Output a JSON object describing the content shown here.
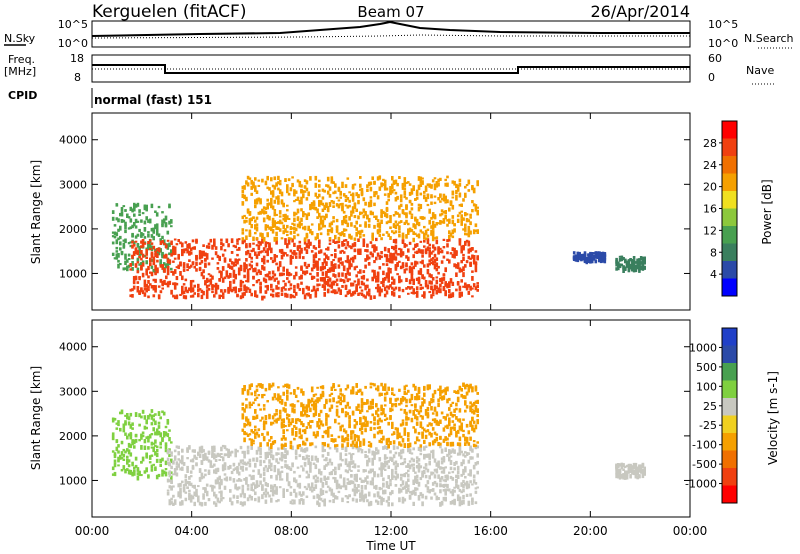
{
  "header": {
    "station": "Kerguelen (fitACF)",
    "beam": "Beam 07",
    "date": "26/Apr/2014"
  },
  "noise_panel": {
    "left_label": "N.Sky",
    "right_label": "N.Search",
    "tick_top": "10^5",
    "tick_bottom": "10^0"
  },
  "freq_panel": {
    "left_label_1": "Freq.",
    "left_label_2": "[MHz]",
    "right_label": "Nave",
    "freq_ticks": [
      "18",
      "8"
    ],
    "nave_ticks": [
      "60",
      "0"
    ]
  },
  "cpid_panel": {
    "label": "CPID",
    "value": "normal (fast) 151"
  },
  "colors": {
    "power_scale": [
      "#0000ff",
      "#2b4aa8",
      "#3a7f5e",
      "#48a050",
      "#8cc83c",
      "#f0e020",
      "#f5a000",
      "#f07000",
      "#f04010",
      "#ff0000"
    ],
    "velocity_scale": [
      "#ff0000",
      "#f04010",
      "#f07000",
      "#f5a000",
      "#f0d020",
      "#c8c8c0",
      "#7fd040",
      "#48a050",
      "#2b4aa8",
      "#2040c8"
    ],
    "ground_scatter": "#c8c8c0"
  },
  "chart_data": [
    {
      "type": "heatmap",
      "parameter": "Power",
      "ylabel": "Slant Range [km]",
      "ylim": [
        180,
        4600
      ],
      "y_ticks": [
        "1000",
        "2000",
        "3000",
        "4000"
      ],
      "colorbar_label": "Power [dB]",
      "colorbar_ticks": [
        "4",
        "8",
        "12",
        "16",
        "20",
        "24",
        "28"
      ],
      "colorbar_range": [
        0,
        32
      ],
      "echo_regions": [
        {
          "t_start": 0.8,
          "t_end": 3.2,
          "r_low": 1100,
          "r_high": 2600,
          "level_db": 12
        },
        {
          "t_start": 1.5,
          "t_end": 15.5,
          "r_low": 500,
          "r_high": 1800,
          "level_db": 28
        },
        {
          "t_start": 6.0,
          "t_end": 15.5,
          "r_low": 1800,
          "r_high": 3200,
          "level_db": 22
        },
        {
          "t_start": 19.3,
          "t_end": 20.6,
          "r_low": 1300,
          "r_high": 1500,
          "level_db": 6
        },
        {
          "t_start": 21.0,
          "t_end": 22.2,
          "r_low": 1100,
          "r_high": 1400,
          "level_db": 9
        }
      ]
    },
    {
      "type": "heatmap",
      "parameter": "Velocity",
      "ylabel": "Slant Range [km]",
      "ylim": [
        180,
        4600
      ],
      "y_ticks": [
        "1000",
        "2000",
        "3000",
        "4000"
      ],
      "colorbar_label": "Velocity [m s-1]",
      "colorbar_ticks": [
        "1000",
        "500",
        "100",
        "25",
        "-25",
        "-100",
        "-500",
        "-1000"
      ],
      "echo_regions": [
        {
          "t_start": 0.8,
          "t_end": 3.2,
          "r_low": 1100,
          "r_high": 2600,
          "velocity": 100
        },
        {
          "t_start": 3.0,
          "t_end": 15.5,
          "r_low": 500,
          "r_high": 1800,
          "velocity": 0
        },
        {
          "t_start": 6.0,
          "t_end": 15.5,
          "r_low": 1800,
          "r_high": 3200,
          "velocity": -100
        },
        {
          "t_start": 21.0,
          "t_end": 22.2,
          "r_low": 1100,
          "r_high": 1400,
          "velocity": 0
        }
      ]
    }
  ],
  "x_axis": {
    "label": "Time UT",
    "ticks": [
      "00:00",
      "04:00",
      "08:00",
      "12:00",
      "16:00",
      "20:00",
      "00:00"
    ],
    "range_hours": [
      0,
      24
    ]
  }
}
